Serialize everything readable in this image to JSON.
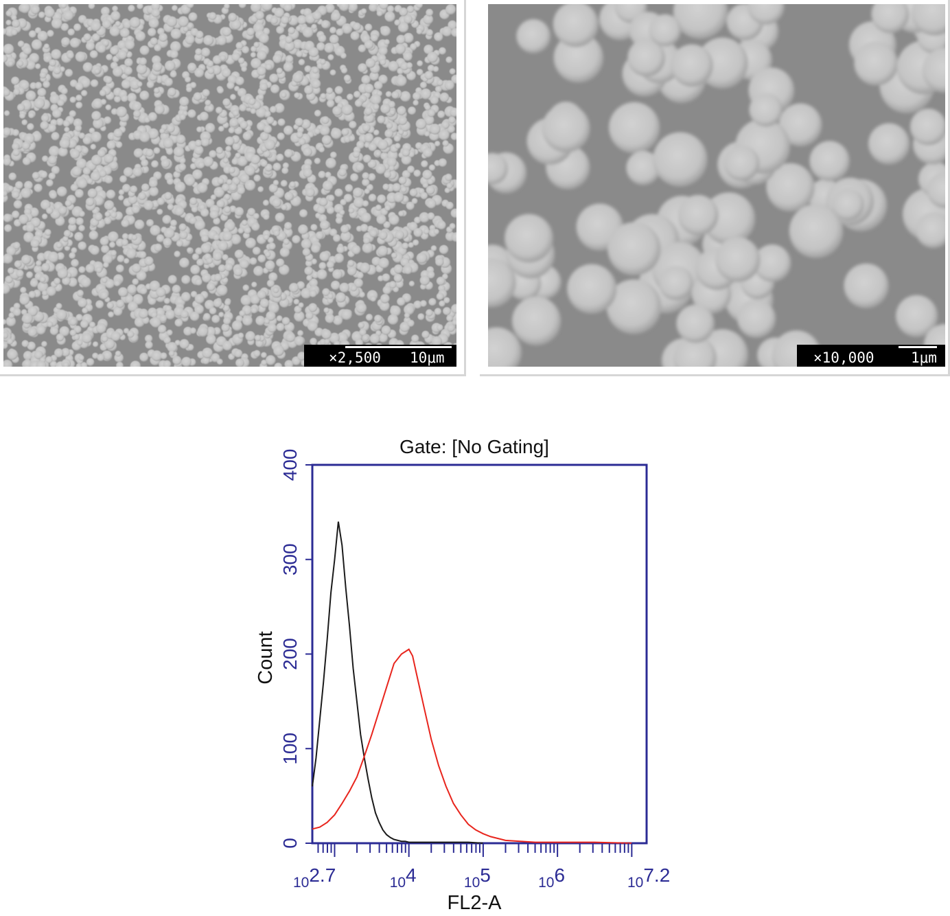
{
  "sem_panels": [
    {
      "magnification": "×2,500",
      "scale": "10μm"
    },
    {
      "magnification": "×10,000",
      "scale": "1μm"
    }
  ],
  "colors": {
    "axis": "#2b2b94",
    "control_series": "#1a1a1a",
    "sample_series": "#e8241c",
    "sem_background": "#8a8a8a",
    "sem_particle": "#c4c4c4"
  },
  "chart_data": {
    "type": "area",
    "title": "Gate: [No Gating]",
    "xlabel": "FL2-A",
    "ylabel": "Count",
    "xscale": "log",
    "xlim": [
      2.7,
      7.2
    ],
    "ylim": [
      0,
      400
    ],
    "yticks": [
      "0",
      "100",
      "200",
      "300",
      "400"
    ],
    "xticks": [
      {
        "base": "10",
        "exp": "2.7"
      },
      {
        "base": "10",
        "exp": "4"
      },
      {
        "base": "10",
        "exp": "5"
      },
      {
        "base": "10",
        "exp": "6"
      },
      {
        "base": "10",
        "exp": "7.2"
      }
    ],
    "series": [
      {
        "color": "#1a1a1a",
        "x": [
          2.7,
          2.75,
          2.8,
          2.85,
          2.9,
          2.95,
          3.0,
          3.05,
          3.1,
          3.15,
          3.2,
          3.25,
          3.3,
          3.35,
          3.4,
          3.45,
          3.5,
          3.55,
          3.6,
          3.65,
          3.7,
          3.75,
          3.8,
          3.85,
          3.9,
          3.95,
          4.0,
          4.1,
          4.2,
          4.3,
          4.5,
          4.8,
          5.0
        ],
        "y": [
          60,
          90,
          130,
          170,
          215,
          265,
          300,
          340,
          315,
          270,
          230,
          185,
          150,
          115,
          90,
          68,
          48,
          32,
          22,
          14,
          9,
          6,
          4,
          3,
          2,
          2,
          1,
          1,
          1,
          1,
          1,
          1,
          0
        ]
      },
      {
        "color": "#e8241c",
        "x": [
          2.7,
          2.8,
          2.9,
          3.0,
          3.1,
          3.2,
          3.3,
          3.4,
          3.5,
          3.6,
          3.7,
          3.8,
          3.9,
          4.0,
          4.05,
          4.1,
          4.2,
          4.3,
          4.4,
          4.5,
          4.6,
          4.7,
          4.8,
          4.9,
          5.0,
          5.1,
          5.2,
          5.3,
          5.5,
          5.7,
          6.0,
          6.5,
          7.0
        ],
        "y": [
          15,
          17,
          22,
          30,
          42,
          55,
          70,
          92,
          115,
          140,
          165,
          190,
          200,
          205,
          198,
          180,
          145,
          110,
          82,
          60,
          42,
          30,
          20,
          14,
          10,
          7,
          5,
          3,
          2,
          1,
          1,
          1,
          0
        ]
      }
    ]
  }
}
